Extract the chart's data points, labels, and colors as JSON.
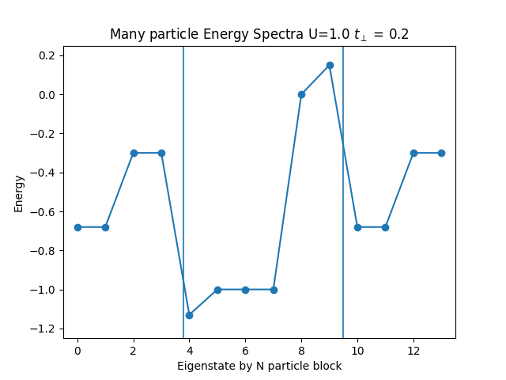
{
  "x": [
    0,
    1,
    2,
    3,
    4,
    5,
    6,
    7,
    8,
    9,
    10,
    11,
    12,
    13
  ],
  "y": [
    -0.68,
    -0.68,
    -0.3,
    -0.3,
    -1.13,
    -1.0,
    -1.0,
    -1.0,
    0.0,
    0.15,
    -0.68,
    -0.68,
    -0.3,
    -0.3
  ],
  "vlines": [
    3.8,
    9.5
  ],
  "title": "Many particle Energy Spectra U=1.0 $t_{\\perp}$ = 0.2",
  "xlabel": "Eigenstate by N particle block",
  "ylabel": "Energy",
  "xlim": [
    -0.5,
    13.5
  ],
  "ylim": [
    -1.25,
    0.25
  ],
  "line_color": "#1f77b4",
  "vline_color": "#1f77b4",
  "marker": "o",
  "markersize": 6,
  "linewidth": 1.5,
  "figsize": [
    6.4,
    4.8
  ],
  "dpi": 100,
  "xticks": [
    0,
    2,
    4,
    6,
    8,
    10,
    12
  ]
}
